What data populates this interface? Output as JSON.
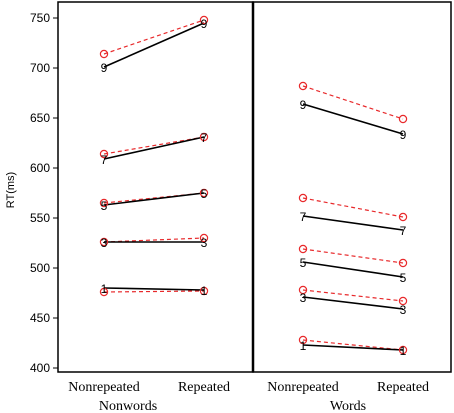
{
  "chart_data": {
    "type": "line",
    "ylabel": "RT(ms)",
    "ylim": [
      400,
      750
    ],
    "yticks": [
      400,
      450,
      500,
      550,
      600,
      650,
      700,
      750
    ],
    "categories": [
      "Nonrepeated",
      "Repeated"
    ],
    "colors": {
      "solid": "#000000",
      "dashed": "#e8292b",
      "frame": "#000000"
    },
    "panels": [
      {
        "name": "Nonwords",
        "series": [
          {
            "label": "9",
            "solid": [
              701,
              745
            ],
            "dashed": [
              714,
              748
            ]
          },
          {
            "label": "7",
            "solid": [
              609,
              631
            ],
            "dashed": [
              614,
              631
            ]
          },
          {
            "label": "5",
            "solid": [
              563,
              575
            ],
            "dashed": [
              565,
              575
            ]
          },
          {
            "label": "3",
            "solid": [
              526,
              526
            ],
            "dashed": [
              526,
              530
            ]
          },
          {
            "label": "1",
            "solid": [
              480,
              478
            ],
            "dashed": [
              476,
              477
            ]
          }
        ]
      },
      {
        "name": "Words",
        "series": [
          {
            "label": "9",
            "solid": [
              664,
              634
            ],
            "dashed": [
              682,
              649
            ]
          },
          {
            "label": "7",
            "solid": [
              552,
              538
            ],
            "dashed": [
              570,
              551
            ]
          },
          {
            "label": "5",
            "solid": [
              506,
              491
            ],
            "dashed": [
              519,
              505
            ]
          },
          {
            "label": "3",
            "solid": [
              471,
              459
            ],
            "dashed": [
              478,
              467
            ]
          },
          {
            "label": "1",
            "solid": [
              423,
              418
            ],
            "dashed": [
              428,
              418
            ]
          }
        ]
      }
    ]
  }
}
